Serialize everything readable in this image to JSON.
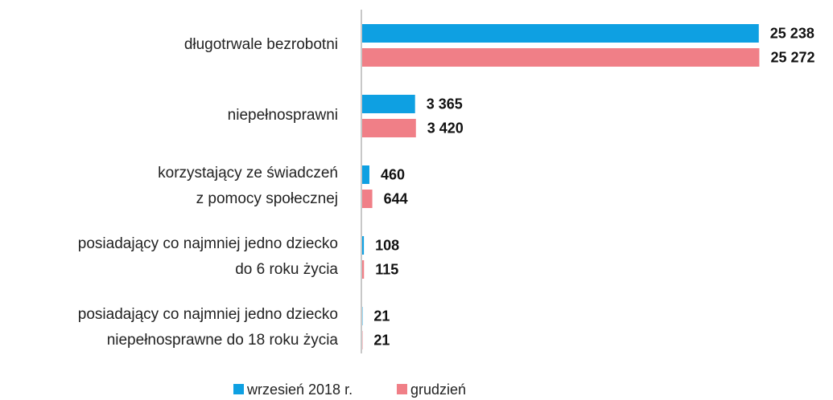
{
  "chart_data": {
    "type": "barh",
    "categories": [
      [
        "długotrwale bezrobotni"
      ],
      [
        "niepełnosprawni"
      ],
      [
        "korzystający ze świadczeń",
        "z pomocy społecznej"
      ],
      [
        "posiadający co najmniej jedno dziecko",
        "do 6 roku życia"
      ],
      [
        "posiadający co najmniej jedno dziecko",
        "niepełnosprawne do 18 roku życia"
      ]
    ],
    "series": [
      {
        "name": "wrzesień 2018 r.",
        "color": "#0ea0e2",
        "values": [
          25238,
          3365,
          460,
          108,
          21
        ],
        "value_labels": [
          "25 238",
          "3 365",
          "460",
          "108",
          "21"
        ]
      },
      {
        "name": "grudzień",
        "color": "#f07f87",
        "values": [
          25272,
          3420,
          644,
          115,
          21
        ],
        "value_labels": [
          "25 272",
          "3 420",
          "644",
          "115",
          "21"
        ]
      }
    ],
    "xlim": [
      0,
      25300
    ],
    "legend": "bottom"
  }
}
